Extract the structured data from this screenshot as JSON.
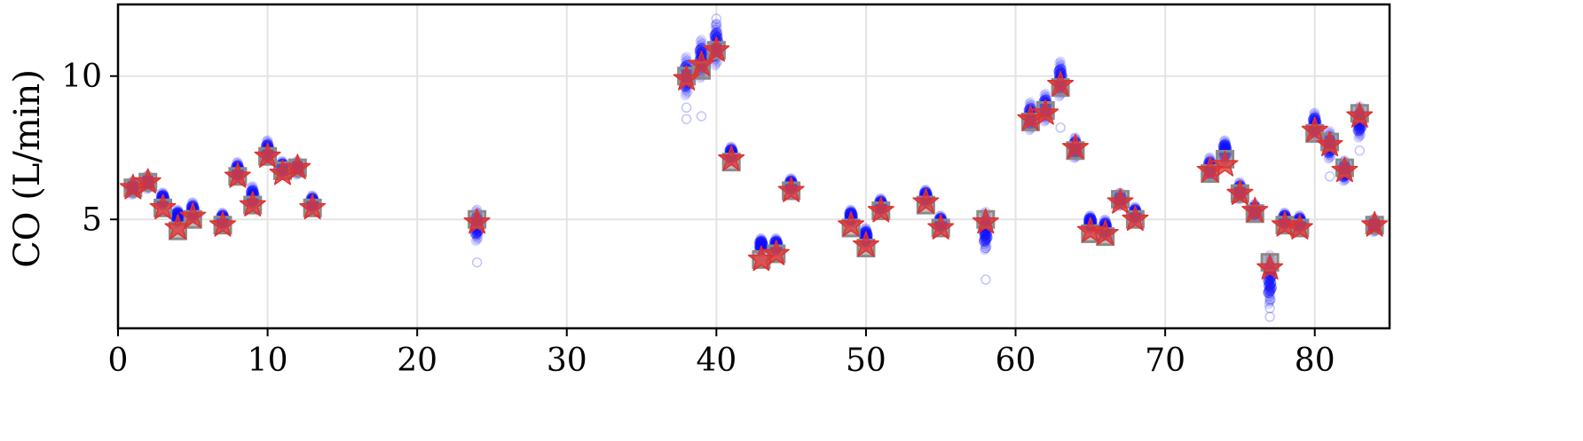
{
  "chart_data": {
    "type": "scatter",
    "title": "",
    "xlabel": "",
    "ylabel": "CO (L/min)",
    "xlim": [
      0,
      85
    ],
    "ylim": [
      1.2,
      12.5
    ],
    "xticks": [
      0,
      10,
      20,
      30,
      40,
      50,
      60,
      70,
      80
    ],
    "yticks": [
      5,
      10
    ],
    "grid": true,
    "colors": {
      "samples": "#1010ff",
      "box": "#8a8a8a",
      "star": "#e03030",
      "grid": "#e3e3e3"
    },
    "series": [
      {
        "marker": "star",
        "points": [
          [
            1,
            6.1
          ],
          [
            2,
            6.3
          ],
          [
            3,
            5.4
          ],
          [
            4,
            4.7
          ],
          [
            5,
            5.1
          ],
          [
            7,
            4.8
          ],
          [
            8,
            6.5
          ],
          [
            9,
            5.5
          ],
          [
            10,
            7.2
          ],
          [
            11,
            6.6
          ],
          [
            12,
            6.8
          ],
          [
            13,
            5.4
          ],
          [
            24,
            4.9
          ],
          [
            38,
            9.9
          ],
          [
            39,
            10.4
          ],
          [
            40,
            10.9
          ],
          [
            41,
            7.1
          ],
          [
            43,
            3.6
          ],
          [
            44,
            3.8
          ],
          [
            45,
            6.0
          ],
          [
            49,
            4.8
          ],
          [
            50,
            4.1
          ],
          [
            51,
            5.3
          ],
          [
            54,
            5.6
          ],
          [
            55,
            4.7
          ],
          [
            58,
            4.9
          ],
          [
            61,
            8.5
          ],
          [
            62,
            8.7
          ],
          [
            63,
            9.7
          ],
          [
            64,
            7.5
          ],
          [
            65,
            4.6
          ],
          [
            66,
            4.5
          ],
          [
            67,
            5.6
          ],
          [
            68,
            5.0
          ],
          [
            73,
            6.7
          ],
          [
            74,
            6.9
          ],
          [
            75,
            5.9
          ],
          [
            76,
            5.3
          ],
          [
            77,
            3.3
          ],
          [
            78,
            4.8
          ],
          [
            79,
            4.7
          ],
          [
            80,
            8.1
          ],
          [
            81,
            7.6
          ],
          [
            82,
            6.7
          ],
          [
            83,
            8.6
          ],
          [
            84,
            4.8
          ]
        ]
      },
      {
        "marker": "square",
        "points": [
          [
            1,
            6.1
          ],
          [
            2,
            6.3
          ],
          [
            3,
            5.4
          ],
          [
            4,
            4.6
          ],
          [
            5,
            5.0
          ],
          [
            7,
            4.8
          ],
          [
            8,
            6.5
          ],
          [
            9,
            5.5
          ],
          [
            10,
            7.2
          ],
          [
            11,
            6.7
          ],
          [
            12,
            6.8
          ],
          [
            13,
            5.4
          ],
          [
            24,
            5.0
          ],
          [
            38,
            10.0
          ],
          [
            39,
            10.2
          ],
          [
            40,
            10.9
          ],
          [
            41,
            7.0
          ],
          [
            43,
            3.6
          ],
          [
            44,
            3.8
          ],
          [
            45,
            6.0
          ],
          [
            49,
            4.7
          ],
          [
            50,
            4.0
          ],
          [
            51,
            5.3
          ],
          [
            54,
            5.5
          ],
          [
            55,
            4.7
          ],
          [
            58,
            5.0
          ],
          [
            61,
            8.4
          ],
          [
            62,
            8.8
          ],
          [
            63,
            9.6
          ],
          [
            64,
            7.4
          ],
          [
            65,
            4.5
          ],
          [
            66,
            4.4
          ],
          [
            67,
            5.7
          ],
          [
            68,
            5.0
          ],
          [
            73,
            6.6
          ],
          [
            74,
            7.1
          ],
          [
            75,
            5.9
          ],
          [
            76,
            5.2
          ],
          [
            77,
            3.5
          ],
          [
            78,
            4.8
          ],
          [
            79,
            4.7
          ],
          [
            80,
            8.0
          ],
          [
            81,
            7.7
          ],
          [
            82,
            6.8
          ],
          [
            83,
            8.7
          ],
          [
            84,
            4.8
          ]
        ]
      },
      {
        "marker": "circle",
        "spread": [
          [
            1,
            6.1,
            0.2
          ],
          [
            2,
            6.3,
            0.2
          ],
          [
            3,
            5.7,
            0.2
          ],
          [
            4,
            5.1,
            0.2
          ],
          [
            5,
            5.3,
            0.25
          ],
          [
            7,
            5.0,
            0.2
          ],
          [
            8,
            6.7,
            0.25
          ],
          [
            9,
            5.8,
            0.3
          ],
          [
            10,
            7.4,
            0.3
          ],
          [
            11,
            6.8,
            0.2
          ],
          [
            12,
            6.8,
            0.2
          ],
          [
            13,
            5.6,
            0.2
          ],
          [
            24,
            4.8,
            0.45
          ],
          [
            38,
            10.0,
            0.55
          ],
          [
            39,
            10.6,
            0.55
          ],
          [
            40,
            11.1,
            0.6
          ],
          [
            41,
            7.3,
            0.2
          ],
          [
            43,
            4.1,
            0.2
          ],
          [
            44,
            4.1,
            0.2
          ],
          [
            45,
            6.2,
            0.2
          ],
          [
            49,
            5.1,
            0.2
          ],
          [
            50,
            4.4,
            0.25
          ],
          [
            51,
            5.5,
            0.2
          ],
          [
            54,
            5.8,
            0.2
          ],
          [
            55,
            4.9,
            0.2
          ],
          [
            58,
            4.6,
            0.55
          ],
          [
            61,
            8.6,
            0.4
          ],
          [
            62,
            8.9,
            0.4
          ],
          [
            63,
            9.9,
            0.5
          ],
          [
            64,
            7.5,
            0.3
          ],
          [
            65,
            4.9,
            0.2
          ],
          [
            66,
            4.7,
            0.25
          ],
          [
            67,
            5.7,
            0.2
          ],
          [
            68,
            5.2,
            0.2
          ],
          [
            73,
            6.8,
            0.3
          ],
          [
            74,
            7.4,
            0.3
          ],
          [
            75,
            6.0,
            0.25
          ],
          [
            76,
            5.3,
            0.2
          ],
          [
            77,
            2.9,
            0.7
          ],
          [
            78,
            5.0,
            0.2
          ],
          [
            79,
            4.9,
            0.2
          ],
          [
            80,
            8.3,
            0.35
          ],
          [
            81,
            7.6,
            0.4
          ],
          [
            82,
            6.7,
            0.3
          ],
          [
            83,
            8.4,
            0.45
          ],
          [
            84,
            4.8,
            0.2
          ]
        ],
        "outliers": [
          [
            24,
            3.5
          ],
          [
            38,
            8.5
          ],
          [
            38,
            8.9
          ],
          [
            39,
            8.6
          ],
          [
            40,
            12.0
          ],
          [
            40,
            11.8
          ],
          [
            58,
            2.9
          ],
          [
            58,
            4.0
          ],
          [
            63,
            8.2
          ],
          [
            77,
            1.6
          ],
          [
            77,
            1.9
          ],
          [
            77,
            2.2
          ],
          [
            81,
            6.5
          ],
          [
            83,
            7.4
          ]
        ]
      }
    ]
  }
}
